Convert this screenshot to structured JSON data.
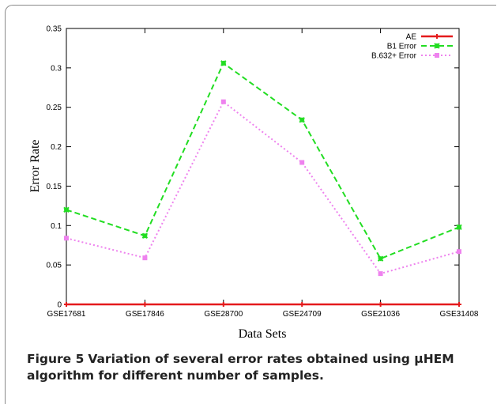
{
  "chart_data": {
    "type": "line",
    "title": "",
    "xlabel": "Data Sets",
    "ylabel": "Error Rate",
    "categories": [
      "GSE17681",
      "GSE17846",
      "GSE28700",
      "GSE24709",
      "GSE21036",
      "GSE31408"
    ],
    "ylim": [
      0,
      0.35
    ],
    "yticks": [
      "0",
      "0.05",
      "0.1",
      "0.15",
      "0.2",
      "0.25",
      "0.3",
      "0.35"
    ],
    "grid": false,
    "legend_position": "top-right",
    "series": [
      {
        "name": "AE",
        "values": [
          0,
          0,
          0,
          0,
          0,
          0
        ],
        "color": "#e41a1c",
        "style": "solid",
        "marker": "plus"
      },
      {
        "name": "B1 Error",
        "values": [
          0.12,
          0.087,
          0.306,
          0.234,
          0.058,
          0.098
        ],
        "color": "#22dd22",
        "style": "dashed",
        "marker": "cross"
      },
      {
        "name": "B.632+ Error",
        "values": [
          0.084,
          0.059,
          0.257,
          0.18,
          0.039,
          0.067
        ],
        "color": "#ee82ee",
        "style": "dotted",
        "marker": "square"
      }
    ]
  },
  "caption": {
    "label": "Figure 5",
    "text": "Variation of several error rates obtained using μHEM algorithm for different number of samples."
  }
}
